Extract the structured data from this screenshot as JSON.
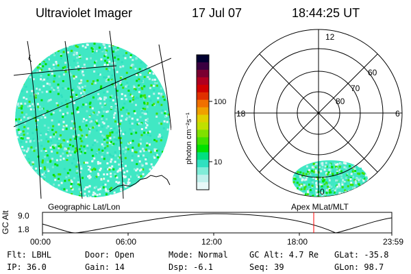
{
  "header": {
    "instrument": "Ultraviolet Imager",
    "date": "17 Jul 07",
    "time": "18:44:25 UT"
  },
  "colorbar": {
    "unit_label": "photon cm⁻²s⁻¹",
    "ticks": [
      "100",
      "10"
    ],
    "colors": [
      "#000030",
      "#3a0040",
      "#7a0030",
      "#b00020",
      "#d00000",
      "#e03000",
      "#f07000",
      "#f0a000",
      "#e0d000",
      "#c0e000",
      "#80e000",
      "#40e000",
      "#00e000",
      "#00e080",
      "#30e0c0",
      "#80ecd8",
      "#c0f0ec",
      "#e8f8f8"
    ]
  },
  "polar": {
    "mlt_labels": [
      "12",
      "18",
      "6",
      "0"
    ],
    "lat_labels": [
      "60",
      "70",
      "80"
    ]
  },
  "panels": {
    "geo_label": "Geographic Lat/Lon",
    "apex_label": "Apex  MLat/MLT"
  },
  "orbit": {
    "y_axis_label": "GC Alt",
    "y_ticks": [
      "9.0",
      "1.8"
    ],
    "x_ticks": [
      "00:00",
      "06:00",
      "12:00",
      "18:00",
      "23:59"
    ],
    "current_time_marker_color": "#ff0000"
  },
  "params": {
    "flt": "Flt: LBHL",
    "ip": "IP: 36.0",
    "door": "Door: Open",
    "gain": "Gain: 14",
    "mode": "Mode: Normal",
    "dsp": "Dsp:   -6.1",
    "gc_alt": "GC Alt: 4.7 Re",
    "seq": "Seq: 39",
    "glat": "GLat: -35.8",
    "glon": "GLon:  98.7"
  }
}
